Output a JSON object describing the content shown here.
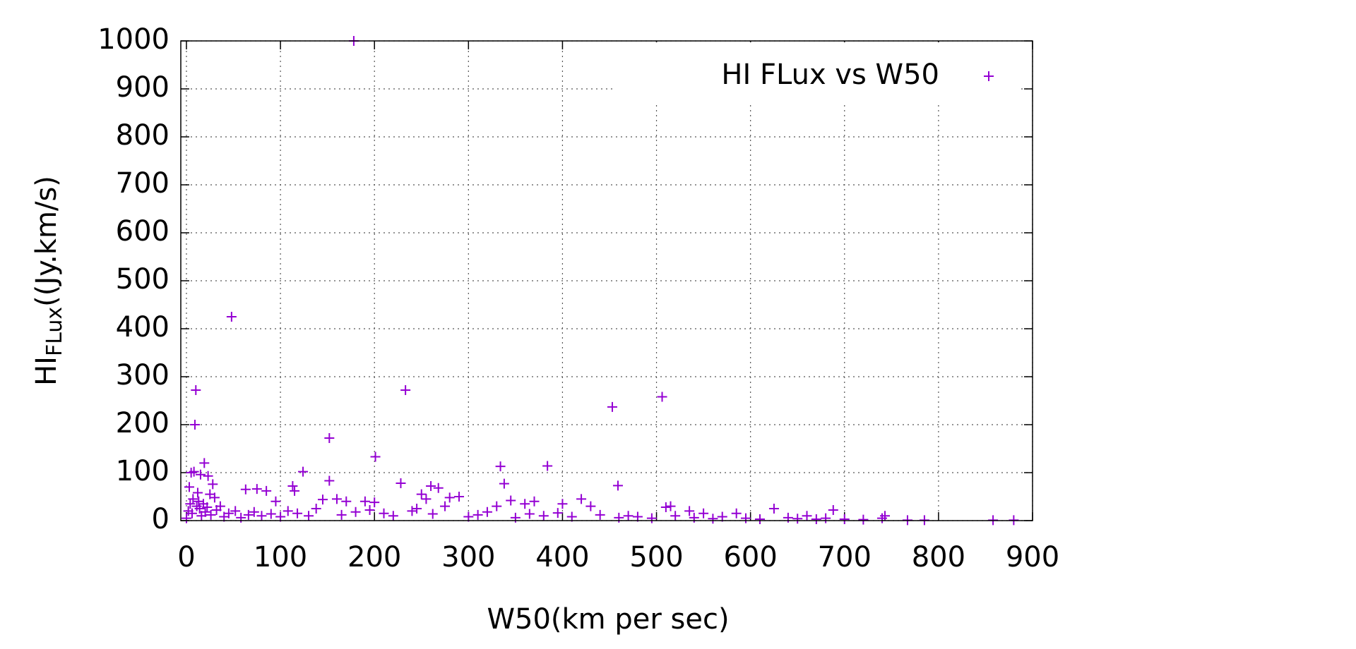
{
  "chart_data": {
    "type": "scatter",
    "x_label": "W50(km per sec)",
    "y_label": {
      "main": "HI",
      "subscript": "FLux",
      "suffix": "((Jy.km/s)"
    },
    "legend": "top-right",
    "grid": true,
    "xlim": [
      -6,
      900
    ],
    "ylim": [
      0,
      1000
    ],
    "xticks": [
      0,
      100,
      200,
      300,
      400,
      500,
      600,
      700,
      800,
      900
    ],
    "yticks": [
      0,
      100,
      200,
      300,
      400,
      500,
      600,
      700,
      800,
      900,
      1000
    ],
    "series": [
      {
        "name": "HI FLux vs W50",
        "color": "#9400d3",
        "x": [
          178,
          48,
          10,
          9,
          233,
          453,
          506,
          152,
          201,
          19,
          124,
          5,
          8,
          15,
          23,
          334,
          384,
          228,
          338,
          260,
          268,
          459,
          152,
          3,
          28,
          63,
          75,
          85,
          113,
          115,
          25,
          12,
          30,
          95,
          145,
          160,
          170,
          190,
          200,
          250,
          255,
          280,
          290,
          330,
          345,
          360,
          370,
          400,
          420,
          430,
          510,
          515,
          535,
          550,
          585,
          625,
          660,
          688,
          700,
          740,
          743,
          767,
          785,
          858,
          880,
          0,
          2,
          4,
          6,
          7,
          11,
          13,
          14,
          16,
          18,
          20,
          22,
          26,
          32,
          36,
          40,
          45,
          52,
          58,
          66,
          72,
          80,
          90,
          100,
          108,
          118,
          130,
          138,
          165,
          180,
          195,
          210,
          220,
          240,
          245,
          262,
          275,
          300,
          310,
          320,
          350,
          365,
          380,
          395,
          410,
          440,
          460,
          470,
          480,
          495,
          520,
          540,
          560,
          570,
          595,
          610,
          640,
          650,
          670,
          680,
          720
        ],
        "y": [
          1000,
          425,
          272,
          200,
          272,
          237,
          258,
          172,
          133,
          120,
          102,
          100,
          102,
          96,
          93,
          113,
          114,
          78,
          77,
          72,
          68,
          73,
          83,
          70,
          76,
          65,
          66,
          62,
          72,
          62,
          55,
          58,
          48,
          40,
          44,
          45,
          40,
          40,
          38,
          55,
          45,
          48,
          50,
          30,
          42,
          35,
          40,
          35,
          45,
          30,
          28,
          30,
          20,
          15,
          15,
          25,
          10,
          22,
          3,
          5,
          10,
          1,
          1,
          1,
          1,
          5,
          20,
          35,
          15,
          45,
          30,
          40,
          25,
          10,
          35,
          18,
          28,
          12,
          22,
          30,
          8,
          15,
          20,
          6,
          12,
          18,
          10,
          14,
          8,
          20,
          15,
          10,
          25,
          12,
          18,
          22,
          15,
          10,
          20,
          25,
          14,
          30,
          8,
          12,
          18,
          6,
          14,
          10,
          16,
          8,
          12,
          6,
          10,
          8,
          5,
          10,
          6,
          4,
          8,
          5,
          3,
          6,
          4,
          3,
          5,
          2
        ]
      }
    ]
  }
}
